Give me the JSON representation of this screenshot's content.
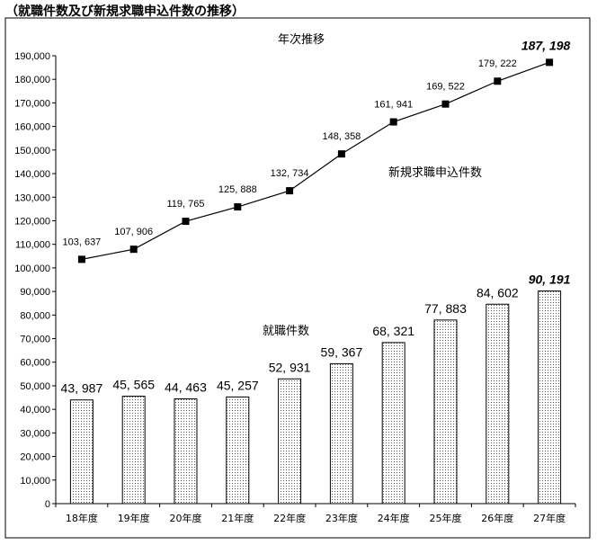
{
  "heading": "（就職件数及び新規求職申込件数の推移）",
  "chart_data": {
    "type": "bar+line",
    "title": "年次推移",
    "categories": [
      "18年度",
      "19年度",
      "20年度",
      "21年度",
      "22年度",
      "23年度",
      "24年度",
      "25年度",
      "26年度",
      "27年度"
    ],
    "ylim": [
      0,
      190000
    ],
    "ytick_step": 10000,
    "yticks": [
      "0",
      "10,000",
      "20,000",
      "30,000",
      "40,000",
      "50,000",
      "60,000",
      "70,000",
      "80,000",
      "90,000",
      "100,000",
      "110,000",
      "120,000",
      "130,000",
      "140,000",
      "150,000",
      "160,000",
      "170,000",
      "180,000",
      "190,000"
    ],
    "grid": false,
    "series": [
      {
        "name": "新規求職申込件数",
        "kind": "line",
        "values": [
          103637,
          107906,
          119765,
          125888,
          132734,
          148358,
          161941,
          169522,
          179222,
          187198
        ],
        "labels": [
          "103, 637",
          "107, 906",
          "119, 765",
          "125, 888",
          "132, 734",
          "148, 358",
          "161, 941",
          "169, 522",
          "179, 222",
          "187, 198"
        ]
      },
      {
        "name": "就職件数",
        "kind": "bar",
        "values": [
          43987,
          45565,
          44463,
          45257,
          52931,
          59367,
          68321,
          77883,
          84602,
          90191
        ],
        "labels": [
          "43, 987",
          "45, 565",
          "44, 463",
          "45, 257",
          "52, 931",
          "59, 367",
          "68, 321",
          "77, 883",
          "84, 602",
          "90, 191"
        ]
      }
    ]
  }
}
